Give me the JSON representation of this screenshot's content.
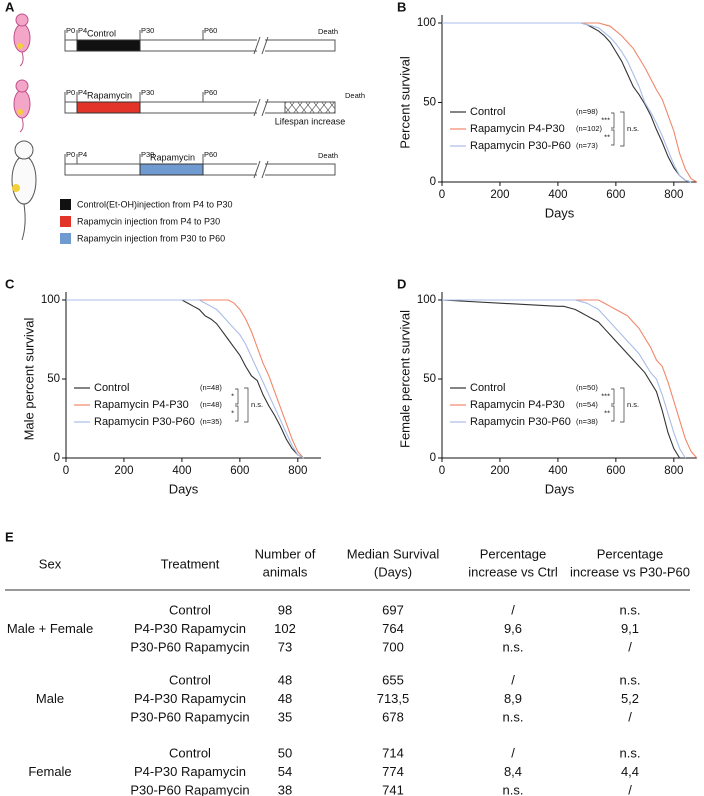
{
  "diagram": {
    "panel": "A",
    "ticks": [
      "P0",
      "P4",
      "P30",
      "P60"
    ],
    "death": "Death",
    "rows": [
      {
        "segment": "Control"
      },
      {
        "segment": "Rapamycin",
        "note": "Lifespan increase"
      },
      {
        "segment": "Rapamycin"
      }
    ],
    "legend": [
      "Control(Et-OH)injection from P4 to P30",
      "Rapamycin injection from P4 to P30",
      "Rapamycin injection from P30 to P60"
    ]
  },
  "chart_data": [
    {
      "type": "line",
      "panel": "B",
      "ylabel": "Percent survival",
      "xlabel": "Days",
      "x": [
        0,
        400,
        420,
        440,
        460,
        480,
        500,
        520,
        540,
        560,
        580,
        600,
        620,
        640,
        660,
        680,
        700,
        720,
        740,
        760,
        780,
        800,
        820,
        840,
        860,
        880
      ],
      "xlim": [
        0,
        880
      ],
      "xticks": [
        0,
        200,
        400,
        600,
        800
      ],
      "ylim": [
        0,
        100
      ],
      "yticks": [
        0,
        50,
        100
      ],
      "series": [
        {
          "name": "Control",
          "n": "(n=98)",
          "color": "#333333",
          "values": [
            100,
            100,
            100,
            100,
            100,
            100,
            99,
            97,
            95,
            92,
            88,
            82,
            76,
            68,
            60,
            55,
            49,
            42,
            33,
            25,
            16,
            9,
            4,
            1,
            0,
            null
          ]
        },
        {
          "name": "Rapamycin P4-P30",
          "n": "(n=102)",
          "color": "#f0876a",
          "values": [
            100,
            100,
            100,
            100,
            100,
            100,
            100,
            100,
            100,
            99,
            98,
            95,
            92,
            88,
            84,
            78,
            72,
            65,
            58,
            52,
            42,
            32,
            18,
            8,
            2,
            0
          ]
        },
        {
          "name": "Rapamycin P30-P60",
          "n": "(n=73)",
          "color": "#a9bde9",
          "values": [
            100,
            100,
            100,
            100,
            100,
            100,
            99,
            98,
            97,
            94,
            91,
            87,
            82,
            76,
            68,
            60,
            50,
            44,
            37,
            29,
            20,
            11,
            4,
            1,
            0,
            null
          ]
        }
      ],
      "significance": [
        "***",
        "**",
        "n.s."
      ]
    },
    {
      "type": "line",
      "panel": "C",
      "ylabel": "Male percent survival",
      "xlabel": "Days",
      "x": [
        0,
        400,
        420,
        440,
        460,
        480,
        500,
        520,
        540,
        560,
        580,
        600,
        620,
        640,
        660,
        680,
        700,
        720,
        740,
        760,
        780,
        800,
        820,
        840
      ],
      "xlim": [
        0,
        880
      ],
      "xticks": [
        0,
        200,
        400,
        600,
        800
      ],
      "ylim": [
        0,
        100
      ],
      "yticks": [
        0,
        50,
        100
      ],
      "series": [
        {
          "name": "Control",
          "n": "(n=48)",
          "color": "#333333",
          "values": [
            100,
            100,
            98,
            96,
            94,
            90,
            88,
            85,
            80,
            75,
            70,
            65,
            58,
            52,
            49,
            40,
            33,
            27,
            20,
            12,
            6,
            2,
            0,
            null
          ]
        },
        {
          "name": "Rapamycin P4-P30",
          "n": "(n=48)",
          "color": "#f0876a",
          "values": [
            100,
            100,
            100,
            100,
            100,
            100,
            100,
            100,
            100,
            100,
            98,
            94,
            88,
            80,
            70,
            60,
            52,
            42,
            32,
            22,
            12,
            4,
            0,
            null
          ]
        },
        {
          "name": "Rapamycin P30-P60",
          "n": "(n=35)",
          "color": "#a9bde9",
          "values": [
            100,
            100,
            100,
            100,
            100,
            98,
            96,
            94,
            90,
            86,
            82,
            78,
            72,
            64,
            56,
            48,
            40,
            32,
            24,
            16,
            8,
            2,
            0,
            null
          ]
        }
      ],
      "significance": [
        "*",
        "*",
        "n.s."
      ]
    },
    {
      "type": "line",
      "panel": "D",
      "ylabel": "Female percent survival",
      "xlabel": "Days",
      "x": [
        0,
        400,
        420,
        440,
        460,
        480,
        500,
        520,
        540,
        560,
        580,
        600,
        620,
        640,
        660,
        680,
        700,
        720,
        740,
        760,
        780,
        800,
        820,
        840,
        860,
        880
      ],
      "xlim": [
        0,
        880
      ],
      "xticks": [
        0,
        200,
        400,
        600,
        800
      ],
      "ylim": [
        0,
        100
      ],
      "yticks": [
        0,
        50,
        100
      ],
      "series": [
        {
          "name": "Control",
          "n": "(n=50)",
          "color": "#333333",
          "values": [
            100,
            96,
            96,
            95,
            94,
            92,
            90,
            88,
            86,
            82,
            78,
            74,
            70,
            66,
            62,
            58,
            54,
            48,
            42,
            30,
            16,
            6,
            0,
            null,
            null,
            null
          ]
        },
        {
          "name": "Rapamycin P4-P30",
          "n": "(n=54)",
          "color": "#f0876a",
          "values": [
            100,
            100,
            100,
            100,
            100,
            100,
            100,
            100,
            100,
            98,
            96,
            94,
            92,
            90,
            86,
            82,
            76,
            70,
            62,
            58,
            48,
            36,
            24,
            12,
            4,
            0
          ]
        },
        {
          "name": "Rapamycin P30-P60",
          "n": "(n=38)",
          "color": "#a9bde9",
          "values": [
            100,
            100,
            100,
            100,
            100,
            99,
            98,
            96,
            94,
            90,
            86,
            82,
            78,
            74,
            70,
            66,
            60,
            54,
            50,
            40,
            28,
            16,
            6,
            0,
            null,
            null
          ]
        }
      ],
      "significance": [
        "***",
        "**",
        "n.s."
      ]
    }
  ],
  "table": {
    "panel": "E",
    "columns": [
      [
        "Sex"
      ],
      [
        "Treatment"
      ],
      [
        "Number of",
        "animals"
      ],
      [
        "Median Survival",
        "(Days)"
      ],
      [
        "Percentage",
        "increase vs Ctrl"
      ],
      [
        "Percentage",
        "increase vs P30-P60"
      ]
    ],
    "groups": [
      {
        "sex": "Male + Female",
        "rows": [
          [
            "Control",
            "98",
            "697",
            "/",
            "n.s."
          ],
          [
            "P4-P30 Rapamycin",
            "102",
            "764",
            "9,6",
            "9,1"
          ],
          [
            "P30-P60 Rapamycin",
            "73",
            "700",
            "n.s.",
            "/"
          ]
        ]
      },
      {
        "sex": "Male",
        "rows": [
          [
            "Control",
            "48",
            "655",
            "/",
            "n.s."
          ],
          [
            "P4-P30 Rapamycin",
            "48",
            "713,5",
            "8,9",
            "5,2"
          ],
          [
            "P30-P60 Rapamycin",
            "35",
            "678",
            "n.s.",
            "/"
          ]
        ]
      },
      {
        "sex": "Female",
        "rows": [
          [
            "Control",
            "50",
            "714",
            "/",
            "n.s."
          ],
          [
            "P4-P30 Rapamycin",
            "54",
            "774",
            "8,4",
            "4,4"
          ],
          [
            "P30-P60 Rapamycin",
            "38",
            "741",
            "n.s.",
            "/"
          ]
        ]
      }
    ]
  }
}
